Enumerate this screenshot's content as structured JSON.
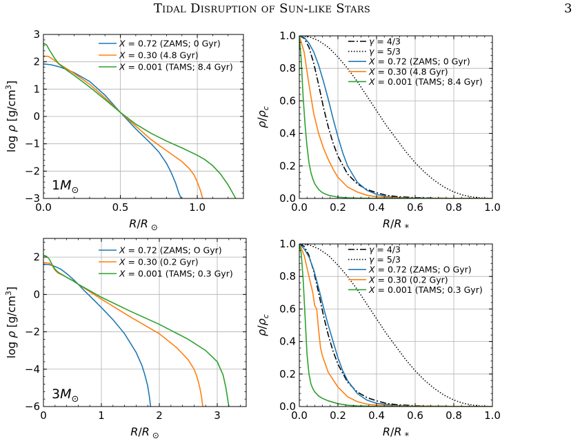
{
  "header": {
    "title": "Tidal Disruption of Sun-like Stars",
    "page_number": "3"
  },
  "chart_data": [
    {
      "type": "line",
      "panel": "top-left",
      "title": "",
      "annotation": "1M_⊙",
      "xlabel": "R/R_⊙",
      "ylabel": "log ρ [g/cm³]",
      "xlim": [
        0,
        1.3
      ],
      "ylim": [
        -3,
        3
      ],
      "xticks": [
        0,
        0.5,
        1
      ],
      "xticklabels": [
        "0.0",
        "0.5",
        "1.0"
      ],
      "yticks": [
        -3,
        -2,
        -1,
        0,
        1,
        2,
        3
      ],
      "yticklabels": [
        "−3",
        "−2",
        "−1",
        "0",
        "1",
        "2",
        "3"
      ],
      "grid": true,
      "legend_position": "top-right",
      "series": [
        {
          "name": "X = 0.72 (ZAMS; 0 Gyr)",
          "color": "#1f77b4",
          "x": [
            0,
            0.05,
            0.1,
            0.15,
            0.2,
            0.3,
            0.4,
            0.5,
            0.6,
            0.7,
            0.75,
            0.8,
            0.83,
            0.86,
            0.88,
            0.895
          ],
          "y": [
            1.92,
            1.89,
            1.82,
            1.72,
            1.6,
            1.28,
            0.78,
            0.15,
            -0.45,
            -1.0,
            -1.3,
            -1.72,
            -2.05,
            -2.45,
            -2.8,
            -3.0
          ]
        },
        {
          "name": "X = 0.30 (4.8 Gyr)",
          "color": "#ff7f0e",
          "x": [
            0,
            0.03,
            0.06,
            0.1,
            0.15,
            0.2,
            0.3,
            0.4,
            0.5,
            0.6,
            0.7,
            0.8,
            0.85,
            0.9,
            0.95,
            0.98,
            1.0,
            1.02,
            1.035
          ],
          "y": [
            2.2,
            2.2,
            2.1,
            1.93,
            1.75,
            1.57,
            1.18,
            0.68,
            0.15,
            -0.35,
            -0.85,
            -1.25,
            -1.45,
            -1.65,
            -1.92,
            -2.15,
            -2.4,
            -2.7,
            -3.0
          ]
        },
        {
          "name": "X = 0.001 (TAMS; 8.4 Gyr)",
          "color": "#2ca02c",
          "x": [
            0,
            0.02,
            0.04,
            0.07,
            0.1,
            0.15,
            0.2,
            0.3,
            0.4,
            0.5,
            0.6,
            0.7,
            0.8,
            0.9,
            1.0,
            1.05,
            1.1,
            1.15,
            1.2,
            1.23,
            1.25
          ],
          "y": [
            2.68,
            2.62,
            2.42,
            2.15,
            1.92,
            1.7,
            1.5,
            1.08,
            0.62,
            0.15,
            -0.28,
            -0.62,
            -0.9,
            -1.15,
            -1.42,
            -1.58,
            -1.8,
            -2.1,
            -2.5,
            -2.8,
            -3.0
          ]
        }
      ]
    },
    {
      "type": "line",
      "panel": "top-right",
      "title": "",
      "xlabel": "R/R_*",
      "ylabel": "ρ/ρ_c",
      "xlim": [
        0,
        1
      ],
      "ylim": [
        0,
        1
      ],
      "xticks": [
        0,
        0.2,
        0.4,
        0.6,
        0.8,
        1
      ],
      "xticklabels": [
        "0.0",
        "0.2",
        "0.4",
        "0.6",
        "0.8",
        "1.0"
      ],
      "yticks": [
        0,
        0.2,
        0.4,
        0.6,
        0.8,
        1
      ],
      "yticklabels": [
        "0.0",
        "0.2",
        "0.4",
        "0.6",
        "0.8",
        "1.0"
      ],
      "grid": true,
      "legend_position": "top-right",
      "series": [
        {
          "name": "γ = 4/3",
          "color": "#000000",
          "dash": "dashdot",
          "x": [
            0,
            0.025,
            0.05,
            0.075,
            0.1,
            0.125,
            0.15,
            0.175,
            0.2,
            0.25,
            0.3,
            0.35,
            0.4,
            0.45,
            0.5,
            0.6,
            0.7,
            0.8,
            1.0
          ],
          "y": [
            1.0,
            0.985,
            0.93,
            0.83,
            0.7,
            0.56,
            0.44,
            0.34,
            0.26,
            0.15,
            0.09,
            0.055,
            0.035,
            0.02,
            0.012,
            0.005,
            0.002,
            0.001,
            0
          ]
        },
        {
          "name": "γ = 5/3",
          "color": "#000000",
          "dash": "dotted",
          "x": [
            0,
            0.05,
            0.1,
            0.15,
            0.2,
            0.25,
            0.3,
            0.35,
            0.4,
            0.45,
            0.5,
            0.55,
            0.6,
            0.65,
            0.7,
            0.75,
            0.8,
            0.85,
            0.9,
            0.95,
            1.0
          ],
          "y": [
            1.0,
            0.995,
            0.97,
            0.93,
            0.87,
            0.8,
            0.72,
            0.63,
            0.54,
            0.45,
            0.37,
            0.29,
            0.22,
            0.16,
            0.11,
            0.07,
            0.04,
            0.02,
            0.008,
            0.002,
            0
          ]
        },
        {
          "name": "X = 0.72 (ZAMS; 0 Gyr)",
          "color": "#1f77b4",
          "x": [
            0,
            0.025,
            0.05,
            0.075,
            0.1,
            0.125,
            0.15,
            0.175,
            0.2,
            0.225,
            0.25,
            0.3,
            0.35,
            0.4,
            0.45,
            0.5,
            0.6,
            0.7,
            1.0
          ],
          "y": [
            1.0,
            0.99,
            0.955,
            0.9,
            0.82,
            0.72,
            0.61,
            0.49,
            0.38,
            0.28,
            0.2,
            0.1,
            0.05,
            0.025,
            0.012,
            0.006,
            0.002,
            0.001,
            0
          ]
        },
        {
          "name": "X = 0.30 (4.8 Gyr)",
          "color": "#ff7f0e",
          "x": [
            0,
            0.025,
            0.05,
            0.075,
            0.1,
            0.125,
            0.15,
            0.175,
            0.2,
            0.25,
            0.3,
            0.35,
            0.4,
            0.5,
            0.6,
            1.0
          ],
          "y": [
            1.0,
            0.9,
            0.7,
            0.52,
            0.4,
            0.31,
            0.24,
            0.18,
            0.13,
            0.07,
            0.04,
            0.02,
            0.01,
            0.004,
            0.001,
            0
          ]
        },
        {
          "name": "X = 0.001 (TAMS; 8.4 Gyr)",
          "color": "#2ca02c",
          "x": [
            0,
            0.01,
            0.02,
            0.03,
            0.04,
            0.05,
            0.06,
            0.07,
            0.08,
            0.1,
            0.12,
            0.15,
            0.2,
            0.25,
            0.3,
            0.4,
            1.0
          ],
          "y": [
            1.0,
            0.85,
            0.62,
            0.45,
            0.32,
            0.22,
            0.16,
            0.12,
            0.09,
            0.055,
            0.035,
            0.02,
            0.008,
            0.004,
            0.002,
            0.001,
            0
          ]
        }
      ]
    },
    {
      "type": "line",
      "panel": "bottom-left",
      "title": "",
      "annotation": "3M_⊙",
      "xlabel": "R/R_⊙",
      "ylabel": "log ρ [g/cm³]",
      "xlim": [
        0,
        3.5
      ],
      "ylim": [
        -6,
        3
      ],
      "xticks": [
        0,
        1,
        2,
        3
      ],
      "xticklabels": [
        "0",
        "1",
        "2",
        "3"
      ],
      "yticks": [
        -6,
        -4,
        -2,
        0,
        2
      ],
      "yticklabels": [
        "−6",
        "−4",
        "−2",
        "0",
        "2"
      ],
      "grid": true,
      "legend_position": "top-right",
      "series": [
        {
          "name": "X = 0.72 (ZAMS; O Gyr)",
          "color": "#1f77b4",
          "x": [
            0,
            0.1,
            0.2,
            0.3,
            0.4,
            0.5,
            0.6,
            0.7,
            0.8,
            1.0,
            1.2,
            1.4,
            1.6,
            1.7,
            1.75,
            1.8,
            1.83,
            1.85
          ],
          "y": [
            1.62,
            1.6,
            1.5,
            1.35,
            1.12,
            0.85,
            0.55,
            0.22,
            -0.08,
            -0.7,
            -1.35,
            -2.1,
            -3.1,
            -3.8,
            -4.3,
            -4.9,
            -5.5,
            -6.0
          ]
        },
        {
          "name": "X = 0.30 (0.2 Gyr)",
          "color": "#ff7f0e",
          "x": [
            0,
            0.1,
            0.15,
            0.2,
            0.25,
            0.3,
            0.4,
            0.5,
            0.6,
            0.8,
            1.0,
            1.5,
            2.0,
            2.3,
            2.5,
            2.6,
            2.65,
            2.7,
            2.73,
            2.75
          ],
          "y": [
            1.7,
            1.68,
            1.55,
            1.3,
            1.15,
            1.08,
            0.92,
            0.75,
            0.55,
            0.15,
            -0.25,
            -1.2,
            -2.1,
            -2.85,
            -3.5,
            -4.0,
            -4.4,
            -5.0,
            -5.5,
            -6.0
          ]
        },
        {
          "name": "X = 0.001 (TAMS; 0.3 Gyr)",
          "color": "#2ca02c",
          "x": [
            0,
            0.05,
            0.1,
            0.15,
            0.2,
            0.25,
            0.3,
            0.4,
            0.5,
            0.6,
            0.8,
            1.0,
            1.5,
            2.0,
            2.5,
            2.8,
            3.0,
            3.1,
            3.15,
            3.2
          ],
          "y": [
            2.1,
            2.05,
            1.9,
            1.6,
            1.35,
            1.2,
            1.1,
            0.92,
            0.75,
            0.55,
            0.2,
            -0.15,
            -0.9,
            -1.6,
            -2.4,
            -3.0,
            -3.6,
            -4.3,
            -5.0,
            -6.0
          ]
        }
      ]
    },
    {
      "type": "line",
      "panel": "bottom-right",
      "title": "",
      "xlabel": "R/R_*",
      "ylabel": "ρ/ρ_c",
      "xlim": [
        0,
        1
      ],
      "ylim": [
        0,
        1
      ],
      "xticks": [
        0,
        0.2,
        0.4,
        0.6,
        0.8,
        1
      ],
      "xticklabels": [
        "0.0",
        "0.2",
        "0.4",
        "0.6",
        "0.8",
        "1.0"
      ],
      "yticks": [
        0,
        0.2,
        0.4,
        0.6,
        0.8,
        1
      ],
      "yticklabels": [
        "0.0",
        "0.2",
        "0.4",
        "0.6",
        "0.8",
        "1.0"
      ],
      "grid": true,
      "legend_position": "top-right",
      "series": [
        {
          "name": "γ = 4/3",
          "color": "#000000",
          "dash": "dashdot",
          "x": [
            0,
            0.025,
            0.05,
            0.075,
            0.1,
            0.125,
            0.15,
            0.175,
            0.2,
            0.25,
            0.3,
            0.35,
            0.4,
            0.45,
            0.5,
            0.6,
            0.7,
            0.8,
            1.0
          ],
          "y": [
            1.0,
            0.985,
            0.93,
            0.83,
            0.7,
            0.56,
            0.44,
            0.34,
            0.26,
            0.15,
            0.09,
            0.055,
            0.035,
            0.02,
            0.012,
            0.005,
            0.002,
            0.001,
            0
          ]
        },
        {
          "name": "γ = 5/3",
          "color": "#000000",
          "dash": "dotted",
          "x": [
            0,
            0.05,
            0.1,
            0.15,
            0.2,
            0.25,
            0.3,
            0.35,
            0.4,
            0.45,
            0.5,
            0.55,
            0.6,
            0.65,
            0.7,
            0.75,
            0.8,
            0.85,
            0.9,
            0.95,
            1.0
          ],
          "y": [
            1.0,
            0.995,
            0.97,
            0.93,
            0.87,
            0.8,
            0.72,
            0.63,
            0.54,
            0.45,
            0.37,
            0.29,
            0.22,
            0.16,
            0.11,
            0.07,
            0.04,
            0.02,
            0.008,
            0.002,
            0
          ]
        },
        {
          "name": "X = 0.72 (ZAMS; O Gyr)",
          "color": "#1f77b4",
          "x": [
            0,
            0.025,
            0.05,
            0.075,
            0.1,
            0.125,
            0.15,
            0.175,
            0.2,
            0.225,
            0.25,
            0.3,
            0.35,
            0.4,
            0.5,
            0.6,
            1.0
          ],
          "y": [
            1.0,
            0.97,
            0.92,
            0.84,
            0.73,
            0.61,
            0.5,
            0.4,
            0.3,
            0.22,
            0.16,
            0.08,
            0.04,
            0.02,
            0.006,
            0.002,
            0
          ]
        },
        {
          "name": "X = 0.30 (0.2 Gyr)",
          "color": "#ff7f0e",
          "x": [
            0,
            0.025,
            0.05,
            0.07,
            0.08,
            0.09,
            0.1,
            0.11,
            0.12,
            0.15,
            0.2,
            0.25,
            0.3,
            0.35,
            0.4,
            0.5,
            1.0
          ],
          "y": [
            1.0,
            0.93,
            0.8,
            0.7,
            0.62,
            0.6,
            0.47,
            0.36,
            0.31,
            0.21,
            0.12,
            0.06,
            0.03,
            0.015,
            0.008,
            0.003,
            0
          ]
        },
        {
          "name": "X = 0.001 (TAMS; 0.3 Gyr)",
          "color": "#2ca02c",
          "x": [
            0,
            0.01,
            0.02,
            0.03,
            0.04,
            0.05,
            0.06,
            0.07,
            0.08,
            0.1,
            0.12,
            0.15,
            0.2,
            0.25,
            0.3,
            0.4,
            1.0
          ],
          "y": [
            1.0,
            0.94,
            0.78,
            0.55,
            0.32,
            0.2,
            0.14,
            0.11,
            0.09,
            0.065,
            0.05,
            0.035,
            0.018,
            0.008,
            0.004,
            0.001,
            0
          ]
        }
      ]
    }
  ]
}
